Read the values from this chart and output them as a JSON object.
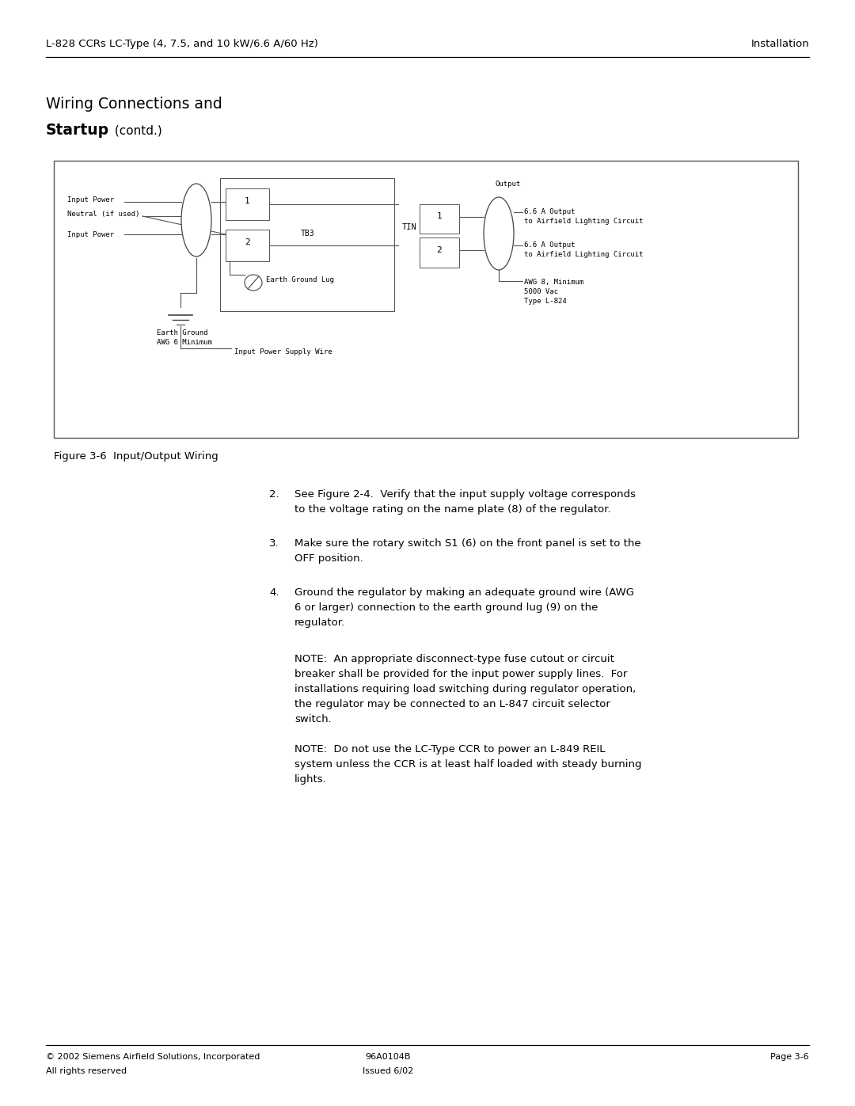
{
  "page_title_left": "L-828 CCRs LC-Type (4, 7.5, and 10 kW/6.6 A/60 Hz)",
  "page_title_right": "Installation",
  "section_title_line1": "Wiring Connections and",
  "section_title_line2_bold": "Startup",
  "section_title_line2_normal": " (contd.)",
  "figure_caption": "Figure 3-6  Input/Output Wiring",
  "footer_left_line1": "© 2002 Siemens Airfield Solutions, Incorporated",
  "footer_left_line2": "All rights reserved",
  "footer_center_line1": "96A0104B",
  "footer_center_line2": "Issued 6/02",
  "footer_right": "Page 3-6",
  "item2_text1": "See Figure 2-4.  Verify that the input supply voltage corresponds",
  "item2_text2": "to the voltage rating on the name plate (8) of the regulator.",
  "item3_text1": "Make sure the rotary switch S1 (6) on the front panel is set to the",
  "item3_text2": "OFF position.",
  "item4_text1": "Ground the regulator by making an adequate ground wire (AWG",
  "item4_text2": "6 or larger) connection to the earth ground lug (9) on the",
  "item4_text3": "regulator.",
  "note1_text1": "NOTE:  An appropriate disconnect-type fuse cutout or circuit",
  "note1_text2": "breaker shall be provided for the input power supply lines.  For",
  "note1_text3": "installations requiring load switching during regulator operation,",
  "note1_text4": "the regulator may be connected to an L-847 circuit selector",
  "note1_text5": "switch.",
  "note2_text1": "NOTE:  Do not use the LC-Type CCR to power an L-849 REIL",
  "note2_text2": "system unless the CCR is at least half loaded with steady burning",
  "note2_text3": "lights.",
  "background_color": "#ffffff",
  "text_color": "#000000"
}
